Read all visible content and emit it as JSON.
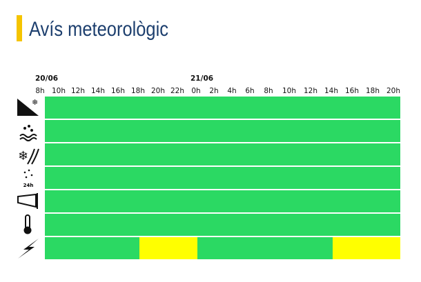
{
  "header": {
    "title": "Avís meteorològic"
  },
  "timeline": {
    "dates": [
      "20/06",
      "21/06"
    ],
    "hours": [
      "8h",
      "10h",
      "12h",
      "14h",
      "16h",
      "18h",
      "20h",
      "22h",
      "0h",
      "2h",
      "4h",
      "6h",
      "8h",
      "10h",
      "12h",
      "14h",
      "16h",
      "18h",
      "20h"
    ],
    "level_colors": [
      "#2bd963",
      "#ffff00"
    ],
    "rows": [
      {
        "levels": [
          0,
          0,
          0,
          0,
          0,
          0,
          0,
          0,
          0,
          0,
          0,
          0,
          0,
          0,
          0,
          0,
          0,
          0,
          0
        ]
      },
      {
        "levels": [
          0,
          0,
          0,
          0,
          0,
          0,
          0,
          0,
          0,
          0,
          0,
          0,
          0,
          0,
          0,
          0,
          0,
          0,
          0
        ]
      },
      {
        "levels": [
          0,
          0,
          0,
          0,
          0,
          0,
          0,
          0,
          0,
          0,
          0,
          0,
          0,
          0,
          0,
          0,
          0,
          0,
          0
        ]
      },
      {
        "icon_label": "24h",
        "levels": [
          0,
          0,
          0,
          0,
          0,
          0,
          0,
          0,
          0,
          0,
          0,
          0,
          0,
          0,
          0,
          0,
          0,
          0,
          0
        ]
      },
      {
        "levels": [
          0,
          0,
          0,
          0,
          0,
          0,
          0,
          0,
          0,
          0,
          0,
          0,
          0,
          0,
          0,
          0,
          0,
          0,
          0
        ]
      },
      {
        "levels": [
          0,
          0,
          0,
          0,
          0,
          0,
          0,
          0,
          0,
          0,
          0,
          0,
          0,
          0,
          0,
          0,
          0,
          0,
          0
        ]
      },
      {
        "levels": [
          0,
          0,
          0,
          0,
          0,
          1,
          1,
          1,
          0,
          0,
          0,
          0,
          0,
          0,
          0,
          1,
          1,
          1,
          1
        ]
      }
    ]
  }
}
